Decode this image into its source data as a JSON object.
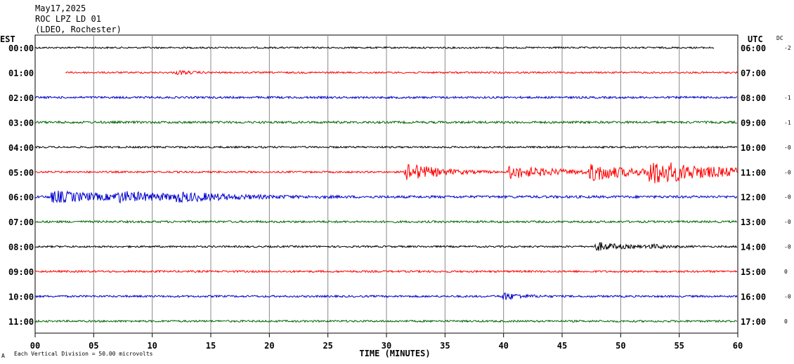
{
  "header": {
    "line1": "May17,2025",
    "line2": "ROC LPZ LD 01",
    "line3": "(LDEO, Rochester)"
  },
  "left_tz": "EST",
  "right_tz": "UTC",
  "dc_label": "DC",
  "footer": {
    "note": "Each Vertical Division =   50.00 microvolts",
    "mark": "A"
  },
  "chart_data": {
    "type": "line",
    "xlabel": "TIME (MINUTES)",
    "x_ticks": [
      "00",
      "05",
      "10",
      "15",
      "20",
      "25",
      "30",
      "35",
      "40",
      "45",
      "50",
      "55",
      "60"
    ],
    "xlim": [
      0,
      60
    ],
    "grid": true,
    "line_colors": [
      "#000000",
      "#ff0000",
      "#0000cc",
      "#006600"
    ],
    "traces": [
      {
        "est": "00:00",
        "utc": "06:00",
        "dc": "-2",
        "color": "#000000",
        "start": 0,
        "end": 58,
        "amp": 1.2,
        "events": []
      },
      {
        "est": "01:00",
        "utc": "07:00",
        "dc": "",
        "color": "#ff0000",
        "start": 2.6,
        "end": 60,
        "amp": 1.2,
        "events": [
          {
            "t": 12.2,
            "a": 3,
            "d": 1
          }
        ]
      },
      {
        "est": "02:00",
        "utc": "08:00",
        "dc": "-1",
        "color": "#0000cc",
        "start": 0,
        "end": 60,
        "amp": 1.5,
        "events": []
      },
      {
        "est": "03:00",
        "utc": "09:00",
        "dc": "-1",
        "color": "#006600",
        "start": 0,
        "end": 60,
        "amp": 1.6,
        "events": []
      },
      {
        "est": "04:00",
        "utc": "10:00",
        "dc": "-0",
        "color": "#000000",
        "start": 0,
        "end": 60,
        "amp": 1.3,
        "events": []
      },
      {
        "est": "05:00",
        "utc": "11:00",
        "dc": "-0",
        "color": "#ff0000",
        "start": 0,
        "end": 60,
        "amp": 1.3,
        "events": [
          {
            "t": 31.8,
            "a": 13,
            "d": 2.5
          },
          {
            "t": 40.5,
            "a": 9,
            "d": 4
          },
          {
            "t": 47.5,
            "a": 12,
            "d": 3
          },
          {
            "t": 52.5,
            "a": 16,
            "d": 6
          }
        ]
      },
      {
        "est": "06:00",
        "utc": "12:00",
        "dc": "-0",
        "color": "#0000cc",
        "start": 0,
        "end": 60,
        "amp": 1.8,
        "events": [
          {
            "t": 1.5,
            "a": 8,
            "d": 5
          },
          {
            "t": 7,
            "a": 5,
            "d": 5
          },
          {
            "t": 12,
            "a": 4,
            "d": 5
          }
        ]
      },
      {
        "est": "07:00",
        "utc": "13:00",
        "dc": "-0",
        "color": "#006600",
        "start": 0,
        "end": 60,
        "amp": 1.5,
        "events": []
      },
      {
        "est": "08:00",
        "utc": "14:00",
        "dc": "-0",
        "color": "#000000",
        "start": 0,
        "end": 60,
        "amp": 1.3,
        "events": [
          {
            "t": 48,
            "a": 6,
            "d": 2
          },
          {
            "t": 52.5,
            "a": 2.5,
            "d": 1.5
          }
        ]
      },
      {
        "est": "09:00",
        "utc": "15:00",
        "dc": "0",
        "color": "#ff0000",
        "start": 0,
        "end": 60,
        "amp": 1.4,
        "events": []
      },
      {
        "est": "10:00",
        "utc": "16:00",
        "dc": "-0",
        "color": "#0000cc",
        "start": 0,
        "end": 60,
        "amp": 1.4,
        "events": [
          {
            "t": 40,
            "a": 5,
            "d": 1.5
          }
        ]
      },
      {
        "est": "11:00",
        "utc": "17:00",
        "dc": "0",
        "color": "#006600",
        "start": 0,
        "end": 60,
        "amp": 1.4,
        "events": []
      }
    ]
  }
}
